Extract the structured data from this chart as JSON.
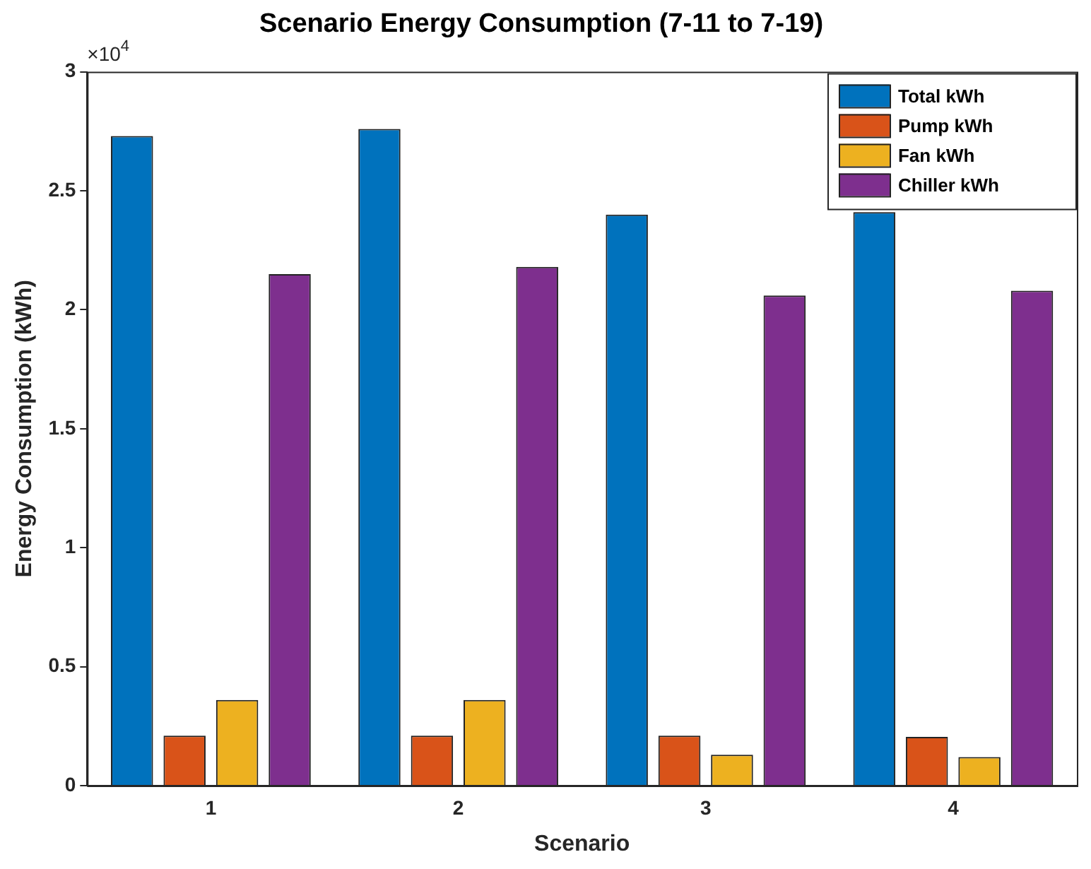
{
  "chart_data": {
    "type": "bar",
    "title": "Scenario Energy Consumption (7-11 to 7-19)",
    "xlabel": "Scenario",
    "ylabel": "Energy Consumption (kWh)",
    "categories": [
      "1",
      "2",
      "3",
      "4"
    ],
    "series": [
      {
        "name": "Total kWh",
        "color": "#0072bd",
        "values": [
          2.73,
          2.76,
          2.4,
          2.41
        ]
      },
      {
        "name": "Pump kWh",
        "color": "#d95319",
        "values": [
          0.21,
          0.21,
          0.21,
          0.205
        ]
      },
      {
        "name": "Fan kWh",
        "color": "#edb120",
        "values": [
          0.36,
          0.36,
          0.13,
          0.12
        ]
      },
      {
        "name": "Chiller kWh",
        "color": "#7e2f8e",
        "values": [
          2.15,
          2.18,
          2.06,
          2.08
        ]
      }
    ],
    "ylim": [
      0,
      3
    ],
    "yticks": [
      0,
      0.5,
      1,
      1.5,
      2,
      2.5,
      3
    ],
    "annotations": [
      "×10$^{4}$"
    ],
    "legend": "top right",
    "grid": false
  }
}
